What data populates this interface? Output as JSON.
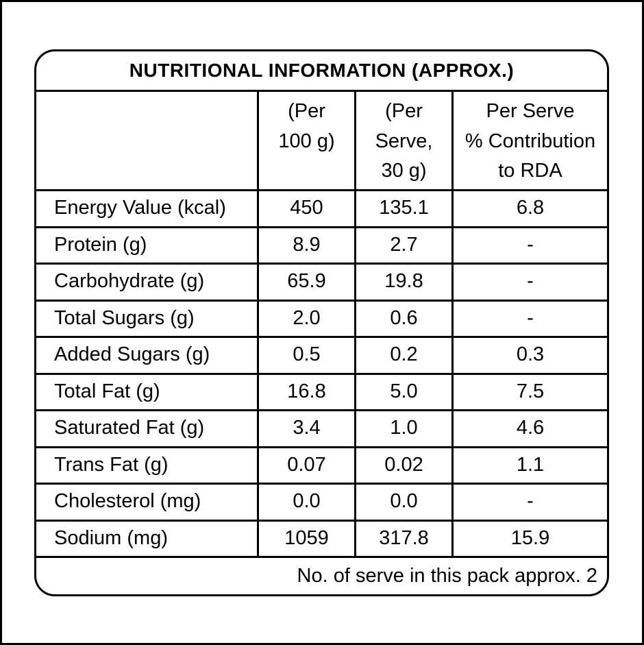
{
  "colors": {
    "border": "#000000",
    "background": "#ffffff",
    "text": "#000000"
  },
  "table": {
    "title": "NUTRITIONAL INFORMATION (APPROX.)",
    "columns": [
      "(Per\n100 g)",
      "(Per\nServe,\n30 g)",
      "Per Serve\n% Contribution\nto RDA"
    ],
    "rows": [
      {
        "label": "Energy Value (kcal)",
        "per_100g": "450",
        "per_serve": "135.1",
        "rda": "6.8"
      },
      {
        "label": "Protein (g)",
        "per_100g": "8.9",
        "per_serve": "2.7",
        "rda": "-"
      },
      {
        "label": "Carbohydrate (g)",
        "per_100g": "65.9",
        "per_serve": "19.8",
        "rda": "-"
      },
      {
        "label": "Total Sugars (g)",
        "per_100g": "2.0",
        "per_serve": "0.6",
        "rda": "-"
      },
      {
        "label": "Added Sugars (g)",
        "per_100g": "0.5",
        "per_serve": "0.2",
        "rda": "0.3"
      },
      {
        "label": "Total Fat (g)",
        "per_100g": "16.8",
        "per_serve": "5.0",
        "rda": "7.5"
      },
      {
        "label": "Saturated Fat (g)",
        "per_100g": "3.4",
        "per_serve": "1.0",
        "rda": "4.6"
      },
      {
        "label": "Trans Fat (g)",
        "per_100g": "0.07",
        "per_serve": "0.02",
        "rda": "1.1"
      },
      {
        "label": "Cholesterol (mg)",
        "per_100g": "0.0",
        "per_serve": "0.0",
        "rda": "-"
      },
      {
        "label": "Sodium (mg)",
        "per_100g": "1059",
        "per_serve": "317.8",
        "rda": "15.9"
      }
    ],
    "footer": "No. of serve in this pack approx. 2"
  }
}
